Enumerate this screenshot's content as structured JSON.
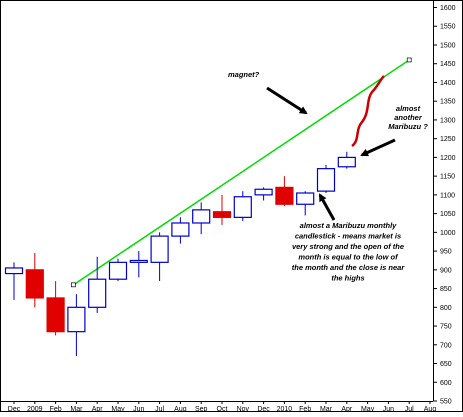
{
  "chart_data": {
    "type": "candlestick",
    "title": "",
    "xlabel": "",
    "ylabel": "",
    "ylim": [
      550,
      1620
    ],
    "yticks": [
      550,
      600,
      650,
      700,
      750,
      800,
      850,
      900,
      950,
      1000,
      1050,
      1100,
      1150,
      1200,
      1250,
      1300,
      1350,
      1400,
      1450,
      1500,
      1550,
      1600
    ],
    "x_labels": [
      "Dec",
      "2009",
      "Feb",
      "Mar",
      "Apr",
      "May",
      "Jun",
      "Jul",
      "Aug",
      "Sep",
      "Oct",
      "Nov",
      "Dec",
      "2010",
      "Feb",
      "Mar",
      "Apr",
      "May",
      "Jun",
      "Jul",
      "Aug"
    ],
    "candles": [
      {
        "label": "Dec",
        "open": 890,
        "high": 920,
        "low": 820,
        "close": 905
      },
      {
        "label": "2009",
        "open": 900,
        "high": 945,
        "low": 800,
        "close": 825
      },
      {
        "label": "Feb",
        "open": 825,
        "high": 870,
        "low": 725,
        "close": 735
      },
      {
        "label": "Mar",
        "open": 735,
        "high": 835,
        "low": 670,
        "close": 800
      },
      {
        "label": "Apr",
        "open": 800,
        "high": 935,
        "low": 785,
        "close": 875
      },
      {
        "label": "May",
        "open": 875,
        "high": 930,
        "low": 870,
        "close": 920
      },
      {
        "label": "Jun",
        "open": 920,
        "high": 950,
        "low": 880,
        "close": 925
      },
      {
        "label": "Jul",
        "open": 920,
        "high": 1000,
        "low": 870,
        "close": 990
      },
      {
        "label": "Aug",
        "open": 990,
        "high": 1040,
        "low": 970,
        "close": 1025
      },
      {
        "label": "Sep",
        "open": 1025,
        "high": 1080,
        "low": 995,
        "close": 1060
      },
      {
        "label": "Oct",
        "open": 1055,
        "high": 1100,
        "low": 1020,
        "close": 1040
      },
      {
        "label": "Nov",
        "open": 1040,
        "high": 1110,
        "low": 1030,
        "close": 1095
      },
      {
        "label": "Dec",
        "open": 1100,
        "high": 1120,
        "low": 1085,
        "close": 1115
      },
      {
        "label": "2010",
        "open": 1120,
        "high": 1150,
        "low": 1070,
        "close": 1075
      },
      {
        "label": "Feb",
        "open": 1075,
        "high": 1110,
        "low": 1045,
        "close": 1105
      },
      {
        "label": "Mar",
        "open": 1110,
        "high": 1180,
        "low": 1105,
        "close": 1170
      },
      {
        "label": "Apr",
        "open": 1175,
        "high": 1215,
        "low": 1170,
        "close": 1200
      }
    ],
    "trendline": {
      "from": {
        "label": "Mar",
        "value": 860
      },
      "to": {
        "label": "Jul",
        "value": 1460
      }
    },
    "colors": {
      "up": "#0000cc",
      "down": "#e00000",
      "trendline": "#00dd00",
      "projection": "#cc0000"
    },
    "grid": false,
    "legend": "none",
    "annotations": [
      "magnet?",
      "almost another Maribuzu ?",
      "almost a Maribuzu monthly candlestick - means market is very strong and the open of the month is equal to the low of the month and the close is near the highs"
    ]
  }
}
